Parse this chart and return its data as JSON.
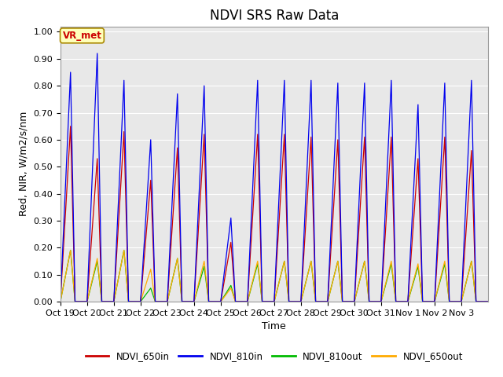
{
  "title": "NDVI SRS Raw Data",
  "ylabel": "Red, NIR, W/m2/s/nm",
  "xlabel": "Time",
  "xlabels": [
    "Oct 19",
    "Oct 20",
    "Oct 21",
    "Oct 22",
    "Oct 23",
    "Oct 24",
    "Oct 25",
    "Oct 26",
    "Oct 27",
    "Oct 28",
    "Oct 29",
    "Oct 30",
    "Oct 31",
    "Nov 1",
    "Nov 2",
    "Nov 3"
  ],
  "ylim": [
    0.0,
    1.02
  ],
  "yticks": [
    0.0,
    0.1,
    0.2,
    0.3,
    0.4,
    0.5,
    0.6,
    0.7,
    0.8,
    0.9,
    1.0
  ],
  "colors": {
    "NDVI_650in": "#cc0000",
    "NDVI_810in": "#0000ee",
    "NDVI_810out": "#00bb00",
    "NDVI_650out": "#ffaa00"
  },
  "annotation_text": "VR_met",
  "annotation_color": "#cc0000",
  "annotation_bg": "#ffffbb",
  "bg_color": "#e8e8e8",
  "title_fontsize": 12,
  "axis_fontsize": 9,
  "tick_fontsize": 8,
  "peaks_810in": [
    0.85,
    0.92,
    0.82,
    0.6,
    0.77,
    0.8,
    0.31,
    0.82,
    0.82,
    0.82,
    0.81,
    0.81,
    0.82,
    0.73,
    0.81,
    0.82
  ],
  "peaks_650in": [
    0.65,
    0.53,
    0.63,
    0.45,
    0.57,
    0.62,
    0.22,
    0.62,
    0.62,
    0.61,
    0.6,
    0.61,
    0.61,
    0.53,
    0.61,
    0.56
  ],
  "peaks_810out": [
    0.19,
    0.15,
    0.19,
    0.05,
    0.16,
    0.13,
    0.06,
    0.14,
    0.15,
    0.15,
    0.15,
    0.15,
    0.14,
    0.13,
    0.14,
    0.15
  ],
  "peaks_650out": [
    0.19,
    0.16,
    0.19,
    0.12,
    0.16,
    0.15,
    0.05,
    0.15,
    0.15,
    0.15,
    0.15,
    0.15,
    0.15,
    0.14,
    0.15,
    0.15
  ],
  "n_days": 16,
  "points_per_day": 200
}
